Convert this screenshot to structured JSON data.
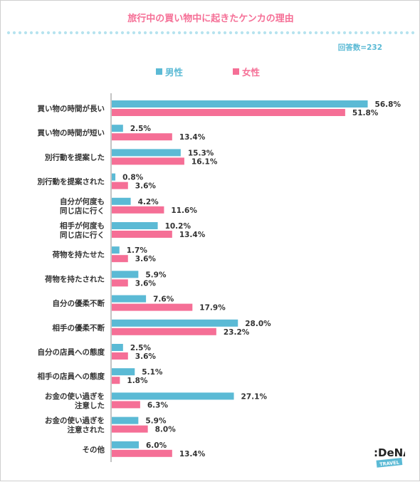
{
  "title": "旅行中の買い物中に起きたケンカの理由",
  "respondents": "回答数=232",
  "colors": {
    "male": "#5bbad5",
    "female": "#f56f96",
    "title": "#f56f96",
    "dots": "#b6e3ef"
  },
  "logo": {
    "main": ":DeNA",
    "sub": "TRAVEL"
  },
  "chart_data": {
    "type": "bar",
    "orientation": "horizontal",
    "title": "旅行中の買い物中に起きたケンカの理由",
    "unit": "%",
    "xlim": [
      0,
      60
    ],
    "legend_position": "top-left",
    "categories": [
      [
        "買い物の時間が長い"
      ],
      [
        "買い物の時間が短い"
      ],
      [
        "別行動を提案した"
      ],
      [
        "別行動を提案された"
      ],
      [
        "自分が何度も",
        "同じ店に行く"
      ],
      [
        "相手が何度も",
        "同じ店に行く"
      ],
      [
        "荷物を持たせた"
      ],
      [
        "荷物を持たされた"
      ],
      [
        "自分の優柔不断"
      ],
      [
        "相手の優柔不断"
      ],
      [
        "自分の店員への態度"
      ],
      [
        "相手の店員への態度"
      ],
      [
        "お金の使い過ぎを",
        "注意した"
      ],
      [
        "お金の使い過ぎを",
        "注意された"
      ],
      [
        "その他"
      ]
    ],
    "series": [
      {
        "name": "男性",
        "values": [
          56.8,
          2.5,
          15.3,
          0.8,
          4.2,
          10.2,
          1.7,
          5.9,
          7.6,
          28.0,
          2.5,
          5.1,
          27.1,
          5.9,
          6.0
        ]
      },
      {
        "name": "女性",
        "values": [
          51.8,
          13.4,
          16.1,
          3.6,
          11.6,
          13.4,
          3.6,
          3.6,
          17.9,
          23.2,
          3.6,
          1.8,
          6.3,
          8.0,
          13.4
        ]
      }
    ]
  }
}
